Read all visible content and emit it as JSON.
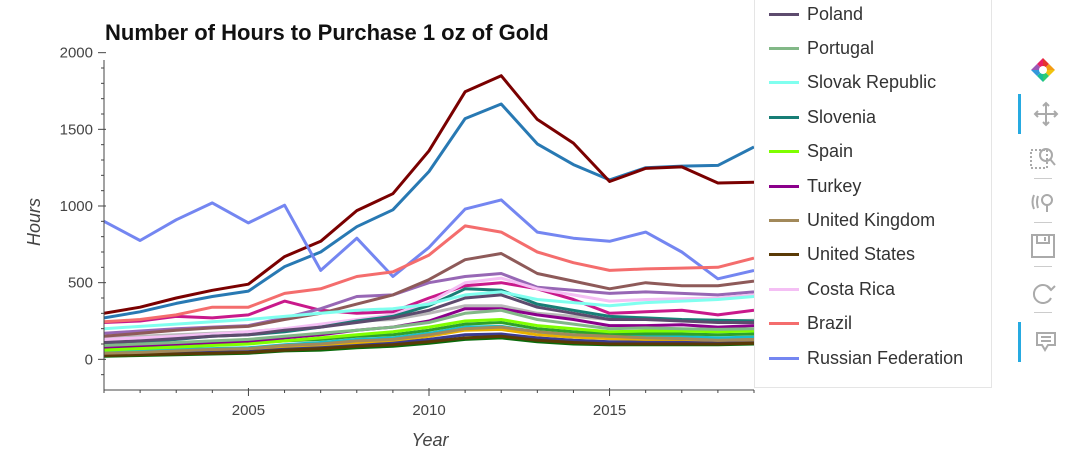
{
  "chart_data": {
    "type": "line",
    "title": "Number of Hours to Purchase 1 oz of Gold",
    "xlabel": "Year",
    "ylabel": "Hours",
    "xlim": [
      2001,
      2019
    ],
    "ylim": [
      -200,
      2050
    ],
    "x_ticks": [
      2005,
      2010,
      2015
    ],
    "y_ticks": [
      0,
      500,
      1000,
      1500,
      2000
    ],
    "x_tick_labels": [
      "2005",
      "2010",
      "2015"
    ],
    "y_tick_labels": [
      "0",
      "500",
      "1000",
      "1500",
      "2000"
    ],
    "grid": false,
    "legend_position": "right",
    "x": [
      2001,
      2002,
      2003,
      2004,
      2005,
      2006,
      2007,
      2008,
      2009,
      2010,
      2011,
      2012,
      2013,
      2014,
      2015,
      2016,
      2017,
      2018,
      2019
    ],
    "series": [
      {
        "name": "Poland",
        "color": "#5d4b6e",
        "values": [
          110,
          120,
          135,
          150,
          160,
          190,
          210,
          240,
          270,
          320,
          400,
          420,
          340,
          300,
          260,
          260,
          250,
          240,
          240
        ]
      },
      {
        "name": "Portugal",
        "color": "#82b887",
        "values": [
          90,
          100,
          110,
          120,
          130,
          150,
          170,
          190,
          210,
          240,
          300,
          320,
          260,
          230,
          200,
          205,
          200,
          195,
          200
        ]
      },
      {
        "name": "Slovak Republic",
        "color": "#80ffef",
        "values": [
          200,
          215,
          230,
          245,
          260,
          280,
          300,
          320,
          330,
          360,
          420,
          440,
          390,
          370,
          350,
          370,
          380,
          390,
          410
        ]
      },
      {
        "name": "Slovenia",
        "color": "#177e76",
        "values": [
          100,
          110,
          130,
          150,
          160,
          180,
          210,
          250,
          280,
          350,
          460,
          450,
          360,
          320,
          280,
          270,
          260,
          255,
          250
        ]
      },
      {
        "name": "Spain",
        "color": "#7fff00",
        "values": [
          60,
          70,
          80,
          90,
          100,
          120,
          140,
          160,
          180,
          210,
          250,
          260,
          220,
          200,
          180,
          185,
          185,
          180,
          185
        ]
      },
      {
        "name": "Turkey",
        "color": "#8b008b",
        "values": [
          80,
          90,
          100,
          110,
          115,
          140,
          160,
          190,
          210,
          250,
          330,
          330,
          290,
          260,
          220,
          220,
          225,
          210,
          220
        ]
      },
      {
        "name": "United Kingdom",
        "color": "#a2895a",
        "values": [
          40,
          45,
          55,
          65,
          70,
          90,
          100,
          120,
          130,
          160,
          200,
          210,
          180,
          160,
          150,
          140,
          135,
          125,
          130
        ]
      },
      {
        "name": "United States",
        "color": "#5a3a06",
        "values": [
          25,
          30,
          35,
          40,
          45,
          60,
          70,
          85,
          95,
          115,
          140,
          150,
          125,
          110,
          100,
          100,
          100,
          100,
          105
        ]
      },
      {
        "name": "Costa Rica",
        "color": "#f4bff4",
        "values": [
          130,
          140,
          150,
          165,
          180,
          200,
          230,
          260,
          290,
          370,
          500,
          530,
          460,
          420,
          380,
          390,
          395,
          400,
          420
        ]
      },
      {
        "name": "Brazil",
        "color": "#f46d6d",
        "values": [
          245,
          260,
          290,
          340,
          340,
          430,
          460,
          540,
          570,
          680,
          870,
          830,
          700,
          630,
          580,
          590,
          595,
          600,
          660
        ]
      },
      {
        "name": "Russian Federation",
        "color": "#7486f1",
        "values": [
          900,
          775,
          910,
          1020,
          890,
          1005,
          580,
          790,
          540,
          730,
          980,
          1040,
          830,
          790,
          770,
          830,
          700,
          525,
          580
        ]
      },
      {
        "name": "",
        "color": "#7a0000",
        "values": [
          300,
          340,
          400,
          450,
          490,
          670,
          770,
          970,
          1080,
          1360,
          1745,
          1850,
          1565,
          1410,
          1160,
          1245,
          1255,
          1150,
          1155
        ]
      },
      {
        "name": "",
        "color": "#2879b3",
        "values": [
          270,
          310,
          365,
          410,
          445,
          605,
          700,
          865,
          975,
          1225,
          1570,
          1665,
          1405,
          1270,
          1170,
          1250,
          1260,
          1265,
          1385
        ]
      },
      {
        "name": "",
        "color": "#8e5a59",
        "values": [
          150,
          170,
          190,
          205,
          215,
          260,
          300,
          360,
          420,
          520,
          650,
          690,
          560,
          510,
          460,
          500,
          480,
          480,
          510
        ]
      },
      {
        "name": "",
        "color": "#9767b5",
        "values": [
          170,
          185,
          200,
          210,
          220,
          270,
          330,
          410,
          420,
          500,
          540,
          560,
          470,
          450,
          430,
          440,
          430,
          420,
          440
        ]
      },
      {
        "name": "",
        "color": "#c9198b",
        "values": [
          240,
          250,
          280,
          270,
          290,
          380,
          320,
          300,
          310,
          400,
          480,
          500,
          460,
          390,
          300,
          310,
          320,
          290,
          320
        ]
      },
      {
        "name": "",
        "color": "#b8b8b8",
        "values": [
          140,
          150,
          160,
          170,
          180,
          200,
          220,
          250,
          260,
          300,
          350,
          350,
          300,
          280,
          260,
          260,
          255,
          250,
          255
        ]
      },
      {
        "name": "",
        "color": "#2ea02c",
        "values": [
          70,
          80,
          90,
          100,
          105,
          120,
          130,
          150,
          160,
          190,
          230,
          240,
          200,
          180,
          165,
          165,
          165,
          160,
          165
        ]
      },
      {
        "name": "",
        "color": "#17becf",
        "values": [
          50,
          55,
          65,
          70,
          75,
          95,
          110,
          130,
          140,
          170,
          210,
          215,
          180,
          160,
          150,
          150,
          148,
          140,
          145
        ]
      },
      {
        "name": "",
        "color": "#e8b000",
        "values": [
          45,
          50,
          60,
          65,
          70,
          85,
          95,
          110,
          125,
          150,
          190,
          195,
          160,
          145,
          135,
          130,
          130,
          125,
          128
        ]
      },
      {
        "name": "",
        "color": "#3b3b8f",
        "values": [
          35,
          40,
          45,
          55,
          60,
          75,
          85,
          100,
          110,
          130,
          160,
          165,
          140,
          125,
          115,
          115,
          115,
          112,
          115
        ]
      },
      {
        "name": "",
        "color": "#0a6a0a",
        "values": [
          20,
          25,
          30,
          35,
          40,
          55,
          60,
          75,
          85,
          105,
          130,
          140,
          115,
          100,
          95,
          95,
          95,
          95,
          100
        ]
      }
    ]
  },
  "legend_items": [
    {
      "label": "Poland",
      "color": "#5d4b6e"
    },
    {
      "label": "Portugal",
      "color": "#82b887"
    },
    {
      "label": "Slovak Republic",
      "color": "#80ffef"
    },
    {
      "label": "Slovenia",
      "color": "#177e76"
    },
    {
      "label": "Spain",
      "color": "#7fff00"
    },
    {
      "label": "Turkey",
      "color": "#8b008b"
    },
    {
      "label": "United Kingdom",
      "color": "#a2895a"
    },
    {
      "label": "United States",
      "color": "#5a3a06"
    },
    {
      "label": "Costa Rica",
      "color": "#f4bff4"
    },
    {
      "label": "Brazil",
      "color": "#f46d6d"
    },
    {
      "label": "Russian Federation",
      "color": "#7486f1"
    }
  ],
  "toolbar": {
    "tools": [
      {
        "name": "bokeh-logo-icon",
        "active": false,
        "interactable": true
      },
      {
        "name": "pan-tool-icon",
        "active": true,
        "interactable": true
      },
      {
        "name": "box-zoom-tool-icon",
        "active": false,
        "interactable": true
      },
      {
        "name": "wheel-zoom-tool-icon",
        "active": false,
        "interactable": true
      },
      {
        "name": "save-tool-icon",
        "active": false,
        "interactable": true
      },
      {
        "name": "reset-tool-icon",
        "active": false,
        "interactable": true
      },
      {
        "name": "hover-tool-icon",
        "active": true,
        "interactable": true
      }
    ]
  }
}
